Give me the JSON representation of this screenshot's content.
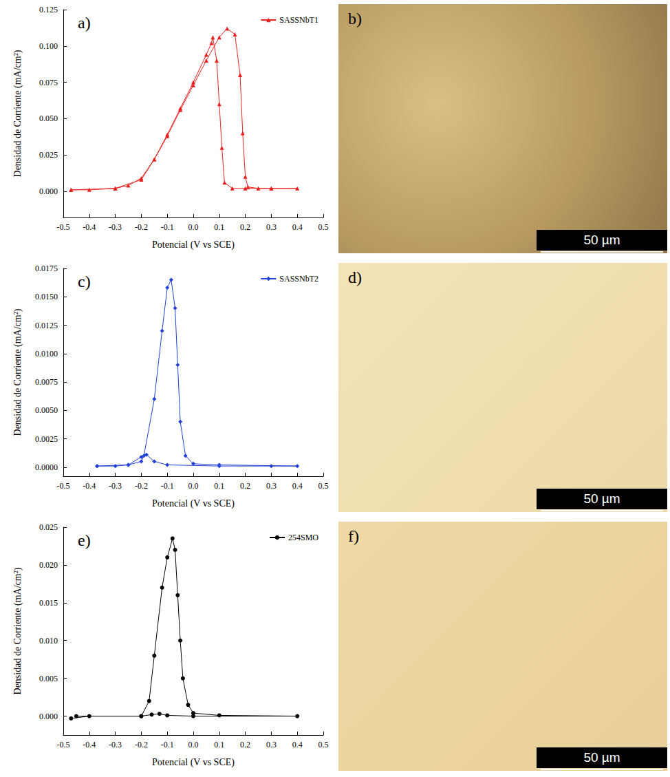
{
  "chart_data": [
    {
      "type": "line",
      "title": "a)",
      "x_label": "Potencial (V vs SCE)",
      "y_label": "Densidad de Corriente (mA/cm²)",
      "xlim": [
        -0.5,
        0.5
      ],
      "xticks": [
        -0.5,
        -0.4,
        -0.3,
        -0.2,
        -0.1,
        {
          "value": 0,
          "label": "0.0"
        },
        0.1,
        0.2,
        0.3,
        0.4,
        0.5
      ],
      "ylim": [
        -0.018,
        0.125
      ],
      "yticks": [
        {
          "value": 0,
          "label": "0.000"
        },
        {
          "value": 0.025,
          "label": "0.025"
        },
        {
          "value": 0.05,
          "label": "0.050"
        },
        {
          "value": 0.075,
          "label": "0.075"
        },
        {
          "value": 0.1,
          "label": "0.100"
        },
        {
          "value": 0.125,
          "label": "0.125"
        }
      ],
      "grid": false,
      "legend": "upper right",
      "series": [
        {
          "name": "SASSNbT1",
          "color": "#e8211f",
          "marker": "triangle",
          "x": [
            -0.47,
            -0.4,
            -0.3,
            -0.25,
            -0.2,
            -0.15,
            -0.1,
            -0.05,
            0,
            0.05,
            0.1,
            0.13,
            0.16,
            0.18,
            0.19,
            0.2,
            0.21,
            0.25,
            0.3,
            0.4,
            0.3,
            0.2,
            0.15,
            0.12,
            0.11,
            0.1,
            0.09,
            0.075,
            0.07,
            0.05,
            0,
            -0.05,
            -0.1,
            -0.15,
            -0.2,
            -0.3,
            -0.47
          ],
          "values": [
            0.001,
            0.001,
            0.002,
            0.004,
            0.009,
            0.022,
            0.038,
            0.056,
            0.073,
            0.09,
            0.106,
            0.112,
            0.108,
            0.08,
            0.04,
            0.01,
            0.003,
            0.002,
            0.002,
            0.002,
            0.002,
            0.002,
            0.002,
            0.006,
            0.03,
            0.06,
            0.09,
            0.106,
            0.102,
            0.094,
            0.075,
            0.057,
            0.039,
            0.022,
            0.008,
            0.002,
            0.001
          ]
        }
      ]
    },
    {
      "type": "line",
      "title": "c)",
      "x_label": "Potencial (V vs SCE)",
      "y_label": "Densidad de Corriente (mA/cm²)",
      "xlim": [
        -0.5,
        0.5
      ],
      "xticks": [
        -0.5,
        -0.4,
        -0.3,
        -0.2,
        -0.1,
        {
          "value": 0,
          "label": "0.0"
        },
        0.1,
        0.2,
        0.3,
        0.4,
        0.5
      ],
      "ylim": [
        -0.0008,
        0.0175
      ],
      "yticks": [
        {
          "value": 0,
          "label": "0.0000"
        },
        {
          "value": 0.0025,
          "label": "0.0025"
        },
        {
          "value": 0.005,
          "label": "0.0050"
        },
        {
          "value": 0.0075,
          "label": "0.0075"
        },
        {
          "value": 0.01,
          "label": "0.0100"
        },
        {
          "value": 0.0125,
          "label": "0.0125"
        },
        {
          "value": 0.015,
          "label": "0.0150"
        },
        {
          "value": 0.0175,
          "label": "0.0175"
        }
      ],
      "grid": false,
      "legend": "upper right",
      "series": [
        {
          "name": "SASSNbT2",
          "color": "#1f3fd6",
          "marker": "diamond",
          "x": [
            -0.37,
            -0.3,
            -0.25,
            -0.2,
            -0.19,
            -0.15,
            -0.12,
            -0.1,
            -0.085,
            -0.07,
            -0.06,
            -0.05,
            -0.03,
            0,
            0.1,
            0.4,
            0.3,
            0.1,
            -0.1,
            -0.15,
            -0.18,
            -0.2,
            -0.25,
            -0.37
          ],
          "values": [
            0.0001,
            0.0001,
            0.0002,
            0.0005,
            0.001,
            0.006,
            0.012,
            0.0158,
            0.0165,
            0.014,
            0.009,
            0.004,
            0.001,
            0.0003,
            0.0002,
            0.0001,
            0.0001,
            0.0001,
            0.0002,
            0.0005,
            0.0011,
            0.0009,
            0.0002,
            0.0001
          ]
        }
      ]
    },
    {
      "type": "line",
      "title": "e)",
      "x_label": "Potencial (V vs SCE)",
      "y_label": "Densidad de Corriente (mA/cm²)",
      "xlim": [
        -0.5,
        0.5
      ],
      "xticks": [
        -0.5,
        -0.4,
        -0.3,
        -0.2,
        -0.1,
        {
          "value": 0,
          "label": "0.0"
        },
        0.1,
        0.2,
        0.3,
        0.4,
        0.5
      ],
      "ylim": [
        -0.0025,
        0.025
      ],
      "yticks": [
        {
          "value": 0,
          "label": "0.000"
        },
        {
          "value": 0.005,
          "label": "0.005"
        },
        {
          "value": 0.01,
          "label": "0.010"
        },
        {
          "value": 0.015,
          "label": "0.015"
        },
        {
          "value": 0.02,
          "label": "0.020"
        },
        {
          "value": 0.025,
          "label": "0.025"
        }
      ],
      "grid": false,
      "legend": "upper right",
      "series": [
        {
          "name": "254SMO",
          "color": "#000000",
          "marker": "circle",
          "x": [
            -0.47,
            -0.4,
            -0.2,
            -0.17,
            -0.15,
            -0.12,
            -0.1,
            -0.08,
            -0.07,
            -0.06,
            -0.05,
            -0.04,
            -0.02,
            0,
            0.1,
            0.4,
            0,
            -0.1,
            -0.13,
            -0.16,
            -0.2,
            -0.45
          ],
          "values": [
            -0.0003,
            0,
            0,
            0.002,
            0.008,
            0.017,
            0.021,
            0.0235,
            0.022,
            0.016,
            0.01,
            0.005,
            0.0015,
            0.0004,
            0.0001,
            0,
            0,
            0.0001,
            0.0003,
            0.0002,
            0,
            0
          ]
        }
      ]
    }
  ],
  "micrographs": [
    {
      "label": "b)",
      "scale_bar": "50 µm"
    },
    {
      "label": "d)",
      "scale_bar": "50 µm"
    },
    {
      "label": "f)",
      "scale_bar": "50 µm"
    }
  ]
}
